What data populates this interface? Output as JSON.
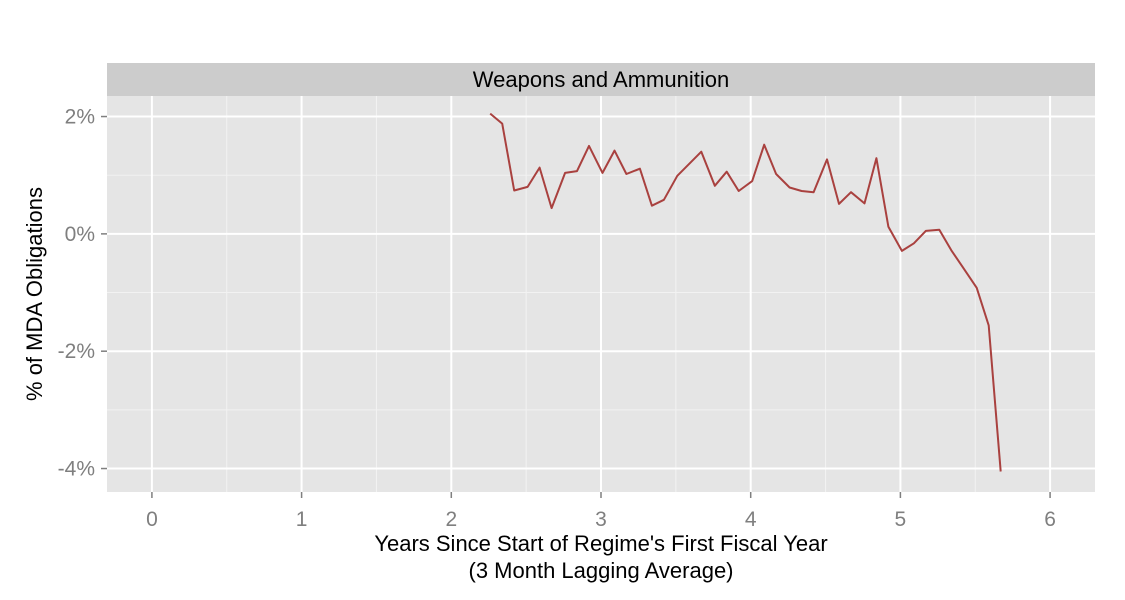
{
  "chart_data": {
    "type": "line",
    "facet_label": "Weapons and Ammunition",
    "xlabel_line1": "Years Since Start of Regime's First Fiscal Year",
    "xlabel_line2": "(3 Month Lagging Average)",
    "ylabel": "% of MDA Obligations",
    "xlim": [
      -0.3,
      6.3
    ],
    "ylim": [
      -4.4,
      2.35
    ],
    "x_ticks": [
      0,
      1,
      2,
      3,
      4,
      5,
      6
    ],
    "x_tick_labels": [
      "0",
      "1",
      "2",
      "3",
      "4",
      "5",
      "6"
    ],
    "y_ticks": [
      -4,
      -2,
      0,
      2
    ],
    "y_tick_labels": [
      "-4%",
      "-2%",
      "0%",
      "2%"
    ],
    "grid": true,
    "series": [
      {
        "color": "#a9413f",
        "x": [
          2.26,
          2.34,
          2.42,
          2.51,
          2.59,
          2.67,
          2.76,
          2.84,
          2.92,
          3.01,
          3.09,
          3.17,
          3.26,
          3.34,
          3.42,
          3.51,
          3.67,
          3.76,
          3.84,
          3.92,
          4.01,
          4.09,
          4.17,
          4.26,
          4.34,
          4.42,
          4.51,
          4.59,
          4.67,
          4.76,
          4.84,
          4.92,
          5.01,
          5.09,
          5.17,
          5.26,
          5.34,
          5.42,
          5.51,
          5.59,
          5.67
        ],
        "y": [
          2.05,
          1.88,
          0.74,
          0.8,
          1.13,
          0.44,
          1.04,
          1.07,
          1.5,
          1.04,
          1.42,
          1.02,
          1.11,
          0.48,
          0.58,
          0.99,
          1.4,
          0.82,
          1.06,
          0.73,
          0.9,
          1.52,
          1.02,
          0.79,
          0.73,
          0.71,
          1.27,
          0.51,
          0.71,
          0.52,
          1.29,
          0.12,
          -0.29,
          -0.16,
          0.05,
          0.07,
          -0.28,
          -0.58,
          -0.92,
          -1.56,
          -4.05
        ]
      }
    ]
  }
}
